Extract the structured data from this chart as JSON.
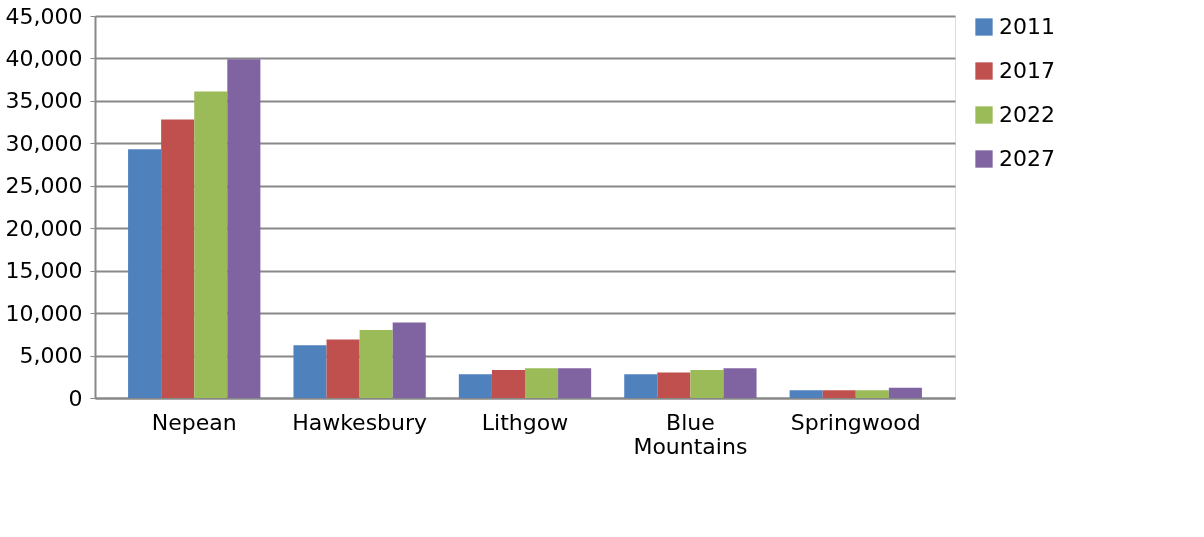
{
  "chart_data": {
    "type": "bar",
    "categories": [
      "Nepean",
      "Hawkesbury",
      "Lithgow",
      "Blue Mountains",
      "Springwood"
    ],
    "series": [
      {
        "name": "2011",
        "color": "#4f81bd",
        "values": [
          29300,
          6200,
          2800,
          2800,
          900
        ]
      },
      {
        "name": "2017",
        "color": "#c0504d",
        "values": [
          32800,
          6900,
          3300,
          3000,
          900
        ]
      },
      {
        "name": "2022",
        "color": "#9bbb59",
        "values": [
          36100,
          8000,
          3500,
          3300,
          900
        ]
      },
      {
        "name": "2027",
        "color": "#8064a2",
        "values": [
          39900,
          8900,
          3500,
          3500,
          1200
        ]
      }
    ],
    "ylim": [
      0,
      45000
    ],
    "yticks": [
      0,
      {
        "value": 5000,
        "label": "5,000"
      },
      {
        "value": 10000,
        "label": "10,000"
      },
      {
        "value": 15000,
        "label": "15,000"
      },
      {
        "value": 20000,
        "label": "20,000"
      },
      {
        "value": 25000,
        "label": "25,000"
      },
      {
        "value": 30000,
        "label": "30,000"
      },
      {
        "value": 35000,
        "label": "35,000"
      },
      {
        "value": 40000,
        "label": "40,000"
      },
      {
        "value": 45000,
        "label": "45,000"
      }
    ],
    "grid": "y",
    "legend": "right"
  }
}
